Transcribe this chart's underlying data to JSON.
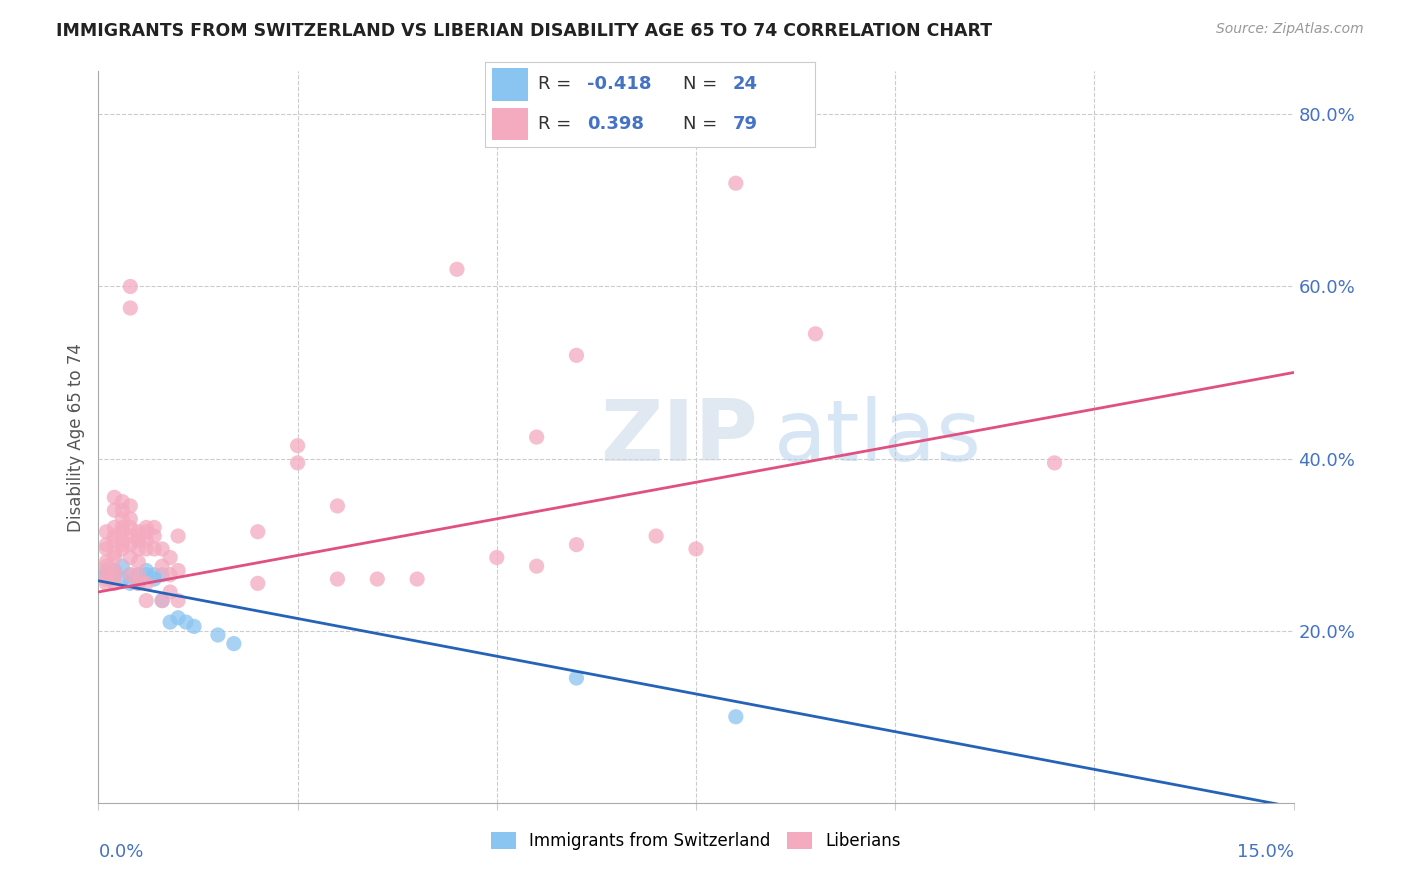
{
  "title": "IMMIGRANTS FROM SWITZERLAND VS LIBERIAN DISABILITY AGE 65 TO 74 CORRELATION CHART",
  "source": "Source: ZipAtlas.com",
  "ylabel": "Disability Age 65 to 74",
  "right_yticks": [
    "20.0%",
    "40.0%",
    "60.0%",
    "80.0%"
  ],
  "right_ytick_vals": [
    0.2,
    0.4,
    0.6,
    0.8
  ],
  "bottom_xtick_labels": [
    "0.0%",
    "15.0%"
  ],
  "xmin": 0.0,
  "xmax": 0.15,
  "ymin": 0.0,
  "ymax": 0.85,
  "swiss_R": -0.418,
  "swiss_N": 24,
  "liberian_R": 0.398,
  "liberian_N": 79,
  "swiss_color": "#8AC4F0",
  "liberian_color": "#F4AABF",
  "swiss_line_color": "#2563B8",
  "liberian_line_color": "#E05080",
  "watermark_zip": "ZIP",
  "watermark_atlas": "atlas",
  "legend_swiss_R": "-0.418",
  "legend_swiss_N": "24",
  "legend_liberian_R": "0.398",
  "legend_liberian_N": "79",
  "swiss_points": [
    [
      0.001,
      0.27
    ],
    [
      0.001,
      0.265
    ],
    [
      0.002,
      0.27
    ],
    [
      0.002,
      0.265
    ],
    [
      0.003,
      0.275
    ],
    [
      0.003,
      0.26
    ],
    [
      0.004,
      0.265
    ],
    [
      0.004,
      0.255
    ],
    [
      0.005,
      0.265
    ],
    [
      0.005,
      0.255
    ],
    [
      0.006,
      0.27
    ],
    [
      0.006,
      0.265
    ],
    [
      0.007,
      0.265
    ],
    [
      0.007,
      0.26
    ],
    [
      0.008,
      0.265
    ],
    [
      0.008,
      0.235
    ],
    [
      0.009,
      0.21
    ],
    [
      0.01,
      0.215
    ],
    [
      0.011,
      0.21
    ],
    [
      0.012,
      0.205
    ],
    [
      0.015,
      0.195
    ],
    [
      0.017,
      0.185
    ],
    [
      0.06,
      0.145
    ],
    [
      0.08,
      0.1
    ]
  ],
  "liberian_points": [
    [
      0.001,
      0.265
    ],
    [
      0.001,
      0.255
    ],
    [
      0.001,
      0.275
    ],
    [
      0.001,
      0.26
    ],
    [
      0.001,
      0.295
    ],
    [
      0.001,
      0.28
    ],
    [
      0.001,
      0.315
    ],
    [
      0.001,
      0.3
    ],
    [
      0.002,
      0.32
    ],
    [
      0.002,
      0.31
    ],
    [
      0.002,
      0.305
    ],
    [
      0.002,
      0.29
    ],
    [
      0.002,
      0.285
    ],
    [
      0.002,
      0.27
    ],
    [
      0.002,
      0.265
    ],
    [
      0.002,
      0.255
    ],
    [
      0.002,
      0.355
    ],
    [
      0.002,
      0.34
    ],
    [
      0.003,
      0.33
    ],
    [
      0.003,
      0.32
    ],
    [
      0.003,
      0.315
    ],
    [
      0.003,
      0.305
    ],
    [
      0.003,
      0.295
    ],
    [
      0.003,
      0.35
    ],
    [
      0.003,
      0.34
    ],
    [
      0.003,
      0.3
    ],
    [
      0.004,
      0.3
    ],
    [
      0.004,
      0.31
    ],
    [
      0.004,
      0.32
    ],
    [
      0.004,
      0.33
    ],
    [
      0.004,
      0.345
    ],
    [
      0.004,
      0.285
    ],
    [
      0.004,
      0.265
    ],
    [
      0.004,
      0.6
    ],
    [
      0.004,
      0.575
    ],
    [
      0.005,
      0.31
    ],
    [
      0.005,
      0.295
    ],
    [
      0.005,
      0.305
    ],
    [
      0.005,
      0.315
    ],
    [
      0.005,
      0.28
    ],
    [
      0.005,
      0.255
    ],
    [
      0.005,
      0.265
    ],
    [
      0.006,
      0.305
    ],
    [
      0.006,
      0.315
    ],
    [
      0.006,
      0.32
    ],
    [
      0.006,
      0.295
    ],
    [
      0.006,
      0.235
    ],
    [
      0.006,
      0.255
    ],
    [
      0.007,
      0.31
    ],
    [
      0.007,
      0.32
    ],
    [
      0.007,
      0.295
    ],
    [
      0.008,
      0.275
    ],
    [
      0.008,
      0.295
    ],
    [
      0.008,
      0.235
    ],
    [
      0.009,
      0.285
    ],
    [
      0.009,
      0.265
    ],
    [
      0.009,
      0.245
    ],
    [
      0.01,
      0.31
    ],
    [
      0.01,
      0.27
    ],
    [
      0.01,
      0.235
    ],
    [
      0.02,
      0.315
    ],
    [
      0.02,
      0.255
    ],
    [
      0.025,
      0.415
    ],
    [
      0.025,
      0.395
    ],
    [
      0.03,
      0.345
    ],
    [
      0.03,
      0.26
    ],
    [
      0.035,
      0.26
    ],
    [
      0.04,
      0.26
    ],
    [
      0.045,
      0.62
    ],
    [
      0.05,
      0.285
    ],
    [
      0.055,
      0.425
    ],
    [
      0.055,
      0.275
    ],
    [
      0.06,
      0.3
    ],
    [
      0.06,
      0.52
    ],
    [
      0.07,
      0.31
    ],
    [
      0.075,
      0.295
    ],
    [
      0.08,
      0.72
    ],
    [
      0.09,
      0.545
    ],
    [
      0.12,
      0.395
    ]
  ]
}
